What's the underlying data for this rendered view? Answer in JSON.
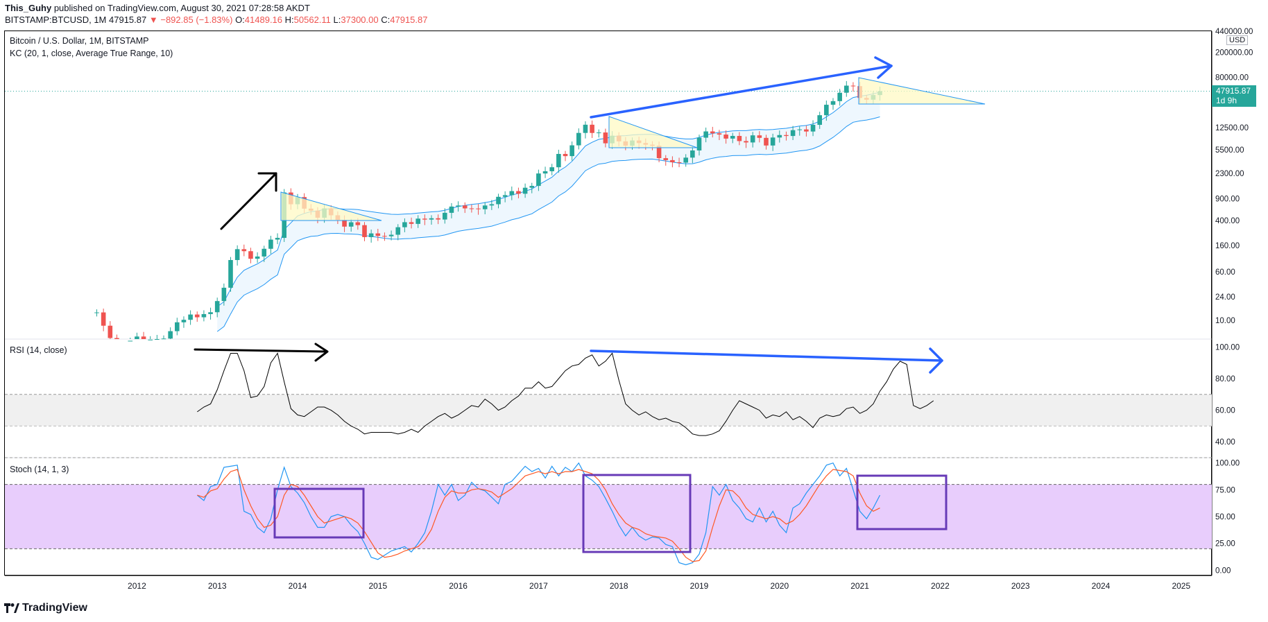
{
  "header": {
    "author": "This_Guhy",
    "published_text": "published on TradingView.com, August 30, 2021 07:28:58 AKDT",
    "symbol": "BITSTAMP:BTCUSD, 1M",
    "last": "47915.87",
    "change": "▼ −892.85 (−1.83%)",
    "o_label": "O:",
    "o": "41489.16",
    "h_label": "H:",
    "h": "50562.11",
    "l_label": "L:",
    "l": "37300.00",
    "c_label": "C:",
    "c": "47915.87"
  },
  "panes": {
    "main_title": "Bitcoin / U.S. Dollar, 1M, BITSTAMP",
    "main_indicator": "KC (20, 1, close, Average True Range, 10)",
    "rsi_title": "RSI (14, close)",
    "stoch_title": "Stoch (14, 1, 3)",
    "currency": "USD",
    "price_tag": "47915.87",
    "countdown": "1d 9h"
  },
  "footer": {
    "brand": "TradingView"
  },
  "colors": {
    "up": "#26a69a",
    "down": "#ef5350",
    "keltner": "#2196f3",
    "keltner_fill": "#e3f2fd",
    "rsi_line": "#000000",
    "rsi_band": "#f0f0f0",
    "stoch_k": "#2196f3",
    "stoch_d": "#ff5722",
    "stoch_band": "#e8cdfc",
    "blue_arrow": "#2962ff",
    "purple_box": "#673ab7",
    "triangle_fill": "#fff9c4"
  },
  "chart_data": [
    {
      "type": "candlestick",
      "scale": "log",
      "y_ticks": [
        440000,
        200000,
        80000,
        12500,
        5500,
        2300,
        900,
        400,
        160,
        60,
        24,
        10
      ],
      "y_tick_labels": [
        "440000.00",
        "200000.00",
        "80000.00",
        "12500.00",
        "5500.00",
        "2300.00",
        "900.00",
        "400.00",
        "160.00",
        "60.00",
        "24.00",
        "10.00"
      ],
      "ylim": [
        5,
        440000
      ],
      "x_labels": [
        "2012",
        "2013",
        "2014",
        "2015",
        "2016",
        "2017",
        "2018",
        "2019",
        "2020",
        "2021",
        "2022",
        "2023",
        "2024",
        "2025"
      ],
      "last_price": 47915.87
    },
    {
      "type": "line",
      "y_ticks": [
        100,
        80,
        60,
        40
      ],
      "y_tick_labels": [
        "100.00",
        "80.00",
        "60.00",
        "40.00"
      ],
      "ylim": [
        30,
        105
      ],
      "band": [
        50,
        70
      ],
      "series": [
        {
          "values": [
            59,
            62,
            64,
            73,
            85,
            96,
            96,
            85,
            68,
            69,
            75,
            90,
            96,
            78,
            61,
            57,
            56,
            59,
            62,
            62,
            60,
            57,
            53,
            50,
            48,
            45,
            46,
            46,
            46,
            46,
            45,
            46,
            48,
            46,
            50,
            53,
            56,
            58,
            55,
            57,
            60,
            63,
            62,
            67,
            64,
            60,
            62,
            66,
            69,
            74,
            74,
            78,
            74,
            75,
            80,
            85,
            88,
            89,
            93,
            95,
            88,
            91,
            96,
            79,
            64,
            60,
            57,
            59,
            56,
            54,
            55,
            53,
            52,
            49,
            45,
            44,
            44,
            45,
            47,
            53,
            60,
            66,
            64,
            62,
            60,
            55,
            57,
            56,
            59,
            54,
            56,
            53,
            49,
            55,
            57,
            56,
            57,
            61,
            62,
            58,
            60,
            64,
            72,
            78,
            86,
            91,
            89,
            63,
            61,
            63,
            66
          ]
        }
      ]
    },
    {
      "type": "line",
      "y_ticks": [
        100,
        75,
        50,
        25,
        0
      ],
      "y_tick_labels": [
        "100.00",
        "75.00",
        "50.00",
        "25.00",
        "0.00"
      ],
      "ylim": [
        -5,
        105
      ],
      "band": [
        20,
        80
      ],
      "series": [
        {
          "values": [
            70,
            65,
            78,
            80,
            96,
            97,
            98,
            55,
            52,
            40,
            35,
            48,
            75,
            96,
            78,
            72,
            63,
            50,
            40,
            40,
            50,
            52,
            50,
            42,
            36,
            25,
            12,
            10,
            14,
            18,
            20,
            22,
            17,
            25,
            35,
            55,
            80,
            70,
            80,
            65,
            70,
            82,
            76,
            74,
            68,
            62,
            80,
            83,
            90,
            97,
            92,
            95,
            86,
            97,
            88,
            96,
            92,
            100,
            88,
            84,
            78,
            67,
            55,
            42,
            32,
            40,
            32,
            28,
            31,
            30,
            24,
            22,
            7,
            5,
            7,
            15,
            35,
            78,
            70,
            80,
            65,
            58,
            48,
            45,
            58,
            45,
            55,
            42,
            35,
            58,
            62,
            72,
            80,
            88,
            98,
            100,
            88,
            95,
            75,
            55,
            48,
            58,
            70
          ]
        },
        {
          "values": [
            70,
            68,
            74,
            76,
            85,
            92,
            94,
            75,
            60,
            48,
            40,
            42,
            50,
            70,
            80,
            78,
            70,
            60,
            50,
            44,
            46,
            48,
            50,
            48,
            44,
            36,
            26,
            16,
            12,
            13,
            15,
            18,
            20,
            22,
            28,
            38,
            55,
            68,
            74,
            72,
            72,
            75,
            76,
            75,
            73,
            68,
            72,
            76,
            82,
            88,
            90,
            92,
            90,
            92,
            90,
            92,
            92,
            94,
            92,
            90,
            84,
            75,
            62,
            52,
            44,
            40,
            38,
            34,
            32,
            31,
            30,
            27,
            20,
            12,
            8,
            9,
            18,
            40,
            60,
            75,
            74,
            68,
            58,
            52,
            50,
            48,
            50,
            48,
            43,
            46,
            52,
            60,
            70,
            80,
            88,
            94,
            93,
            92,
            88,
            72,
            60,
            55,
            58
          ]
        }
      ]
    }
  ]
}
